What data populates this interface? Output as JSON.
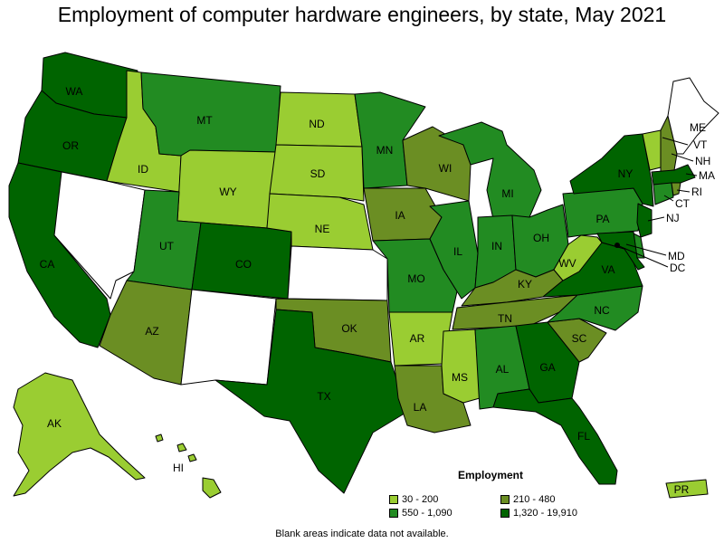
{
  "title": "Employment of computer hardware engineers, by state, May 2021",
  "legend": {
    "title": "Employment",
    "bins": [
      {
        "label": "30 - 200",
        "color": "#9acd32"
      },
      {
        "label": "210 - 480",
        "color": "#6b8e23"
      },
      {
        "label": "550 - 1,090",
        "color": "#228b22"
      },
      {
        "label": "1,320 - 19,910",
        "color": "#006400"
      }
    ]
  },
  "note": "Blank areas indicate data not available.",
  "map_data": {
    "type": "choropleth",
    "region": "United States",
    "states": [
      {
        "abbr": "WA",
        "bin": 3
      },
      {
        "abbr": "OR",
        "bin": 3
      },
      {
        "abbr": "CA",
        "bin": 3
      },
      {
        "abbr": "NV",
        "bin": null
      },
      {
        "abbr": "ID",
        "bin": 0
      },
      {
        "abbr": "MT",
        "bin": 2
      },
      {
        "abbr": "WY",
        "bin": 0
      },
      {
        "abbr": "UT",
        "bin": 2
      },
      {
        "abbr": "CO",
        "bin": 3
      },
      {
        "abbr": "AZ",
        "bin": 1
      },
      {
        "abbr": "NM",
        "bin": null
      },
      {
        "abbr": "ND",
        "bin": 0
      },
      {
        "abbr": "SD",
        "bin": 0
      },
      {
        "abbr": "NE",
        "bin": 0
      },
      {
        "abbr": "KS",
        "bin": null
      },
      {
        "abbr": "OK",
        "bin": 1
      },
      {
        "abbr": "TX",
        "bin": 3
      },
      {
        "abbr": "MN",
        "bin": 2
      },
      {
        "abbr": "IA",
        "bin": 1
      },
      {
        "abbr": "MO",
        "bin": 2
      },
      {
        "abbr": "AR",
        "bin": 0
      },
      {
        "abbr": "LA",
        "bin": 1
      },
      {
        "abbr": "WI",
        "bin": 1
      },
      {
        "abbr": "IL",
        "bin": 2
      },
      {
        "abbr": "MI",
        "bin": 2
      },
      {
        "abbr": "IN",
        "bin": 2
      },
      {
        "abbr": "OH",
        "bin": 2
      },
      {
        "abbr": "KY",
        "bin": 1
      },
      {
        "abbr": "TN",
        "bin": 1
      },
      {
        "abbr": "MS",
        "bin": 0
      },
      {
        "abbr": "AL",
        "bin": 2
      },
      {
        "abbr": "GA",
        "bin": 3
      },
      {
        "abbr": "FL",
        "bin": 3
      },
      {
        "abbr": "SC",
        "bin": 1
      },
      {
        "abbr": "NC",
        "bin": 2
      },
      {
        "abbr": "VA",
        "bin": 3
      },
      {
        "abbr": "WV",
        "bin": 0
      },
      {
        "abbr": "PA",
        "bin": 2
      },
      {
        "abbr": "NY",
        "bin": 3
      },
      {
        "abbr": "VT",
        "bin": 0
      },
      {
        "abbr": "NH",
        "bin": 1
      },
      {
        "abbr": "ME",
        "bin": null
      },
      {
        "abbr": "MA",
        "bin": 3
      },
      {
        "abbr": "RI",
        "bin": 1
      },
      {
        "abbr": "CT",
        "bin": 2
      },
      {
        "abbr": "NJ",
        "bin": 3
      },
      {
        "abbr": "DE",
        "bin": 2
      },
      {
        "abbr": "MD",
        "bin": 3
      },
      {
        "abbr": "DC",
        "bin": 3
      },
      {
        "abbr": "AK",
        "bin": 0
      },
      {
        "abbr": "HI",
        "bin": 0
      },
      {
        "abbr": "PR",
        "bin": 0
      }
    ]
  }
}
